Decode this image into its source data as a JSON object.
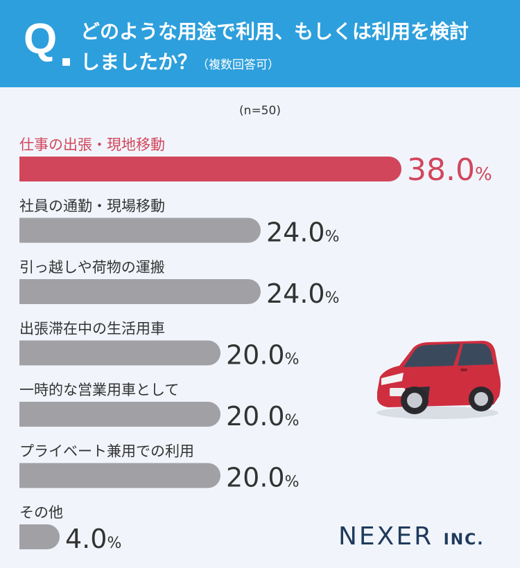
{
  "question": {
    "mark": "Q",
    "line1": "どのような用途で利用、もしくは利用を検討",
    "line2": "しましたか？",
    "note": "（複数回答可）"
  },
  "sample_label": "(n=50)",
  "logo": {
    "name": "NEXER",
    "suffix": "INC."
  },
  "colors": {
    "highlight": "#d2465c",
    "bar": "#a0a0a5",
    "header": "#2d9fdc"
  },
  "chart_data": {
    "type": "bar",
    "orientation": "horizontal",
    "categories": [
      "仕事の出張・現地移動",
      "社員の通勤・現場移動",
      "引っ越しや荷物の運搬",
      "出張滞在中の生活用車",
      "一時的な営業用車として",
      "プライベート兼用での利用",
      "その他"
    ],
    "values": [
      38.0,
      24.0,
      24.0,
      20.0,
      20.0,
      20.0,
      4.0
    ],
    "value_suffix": "%",
    "highlight_index": 0
  }
}
